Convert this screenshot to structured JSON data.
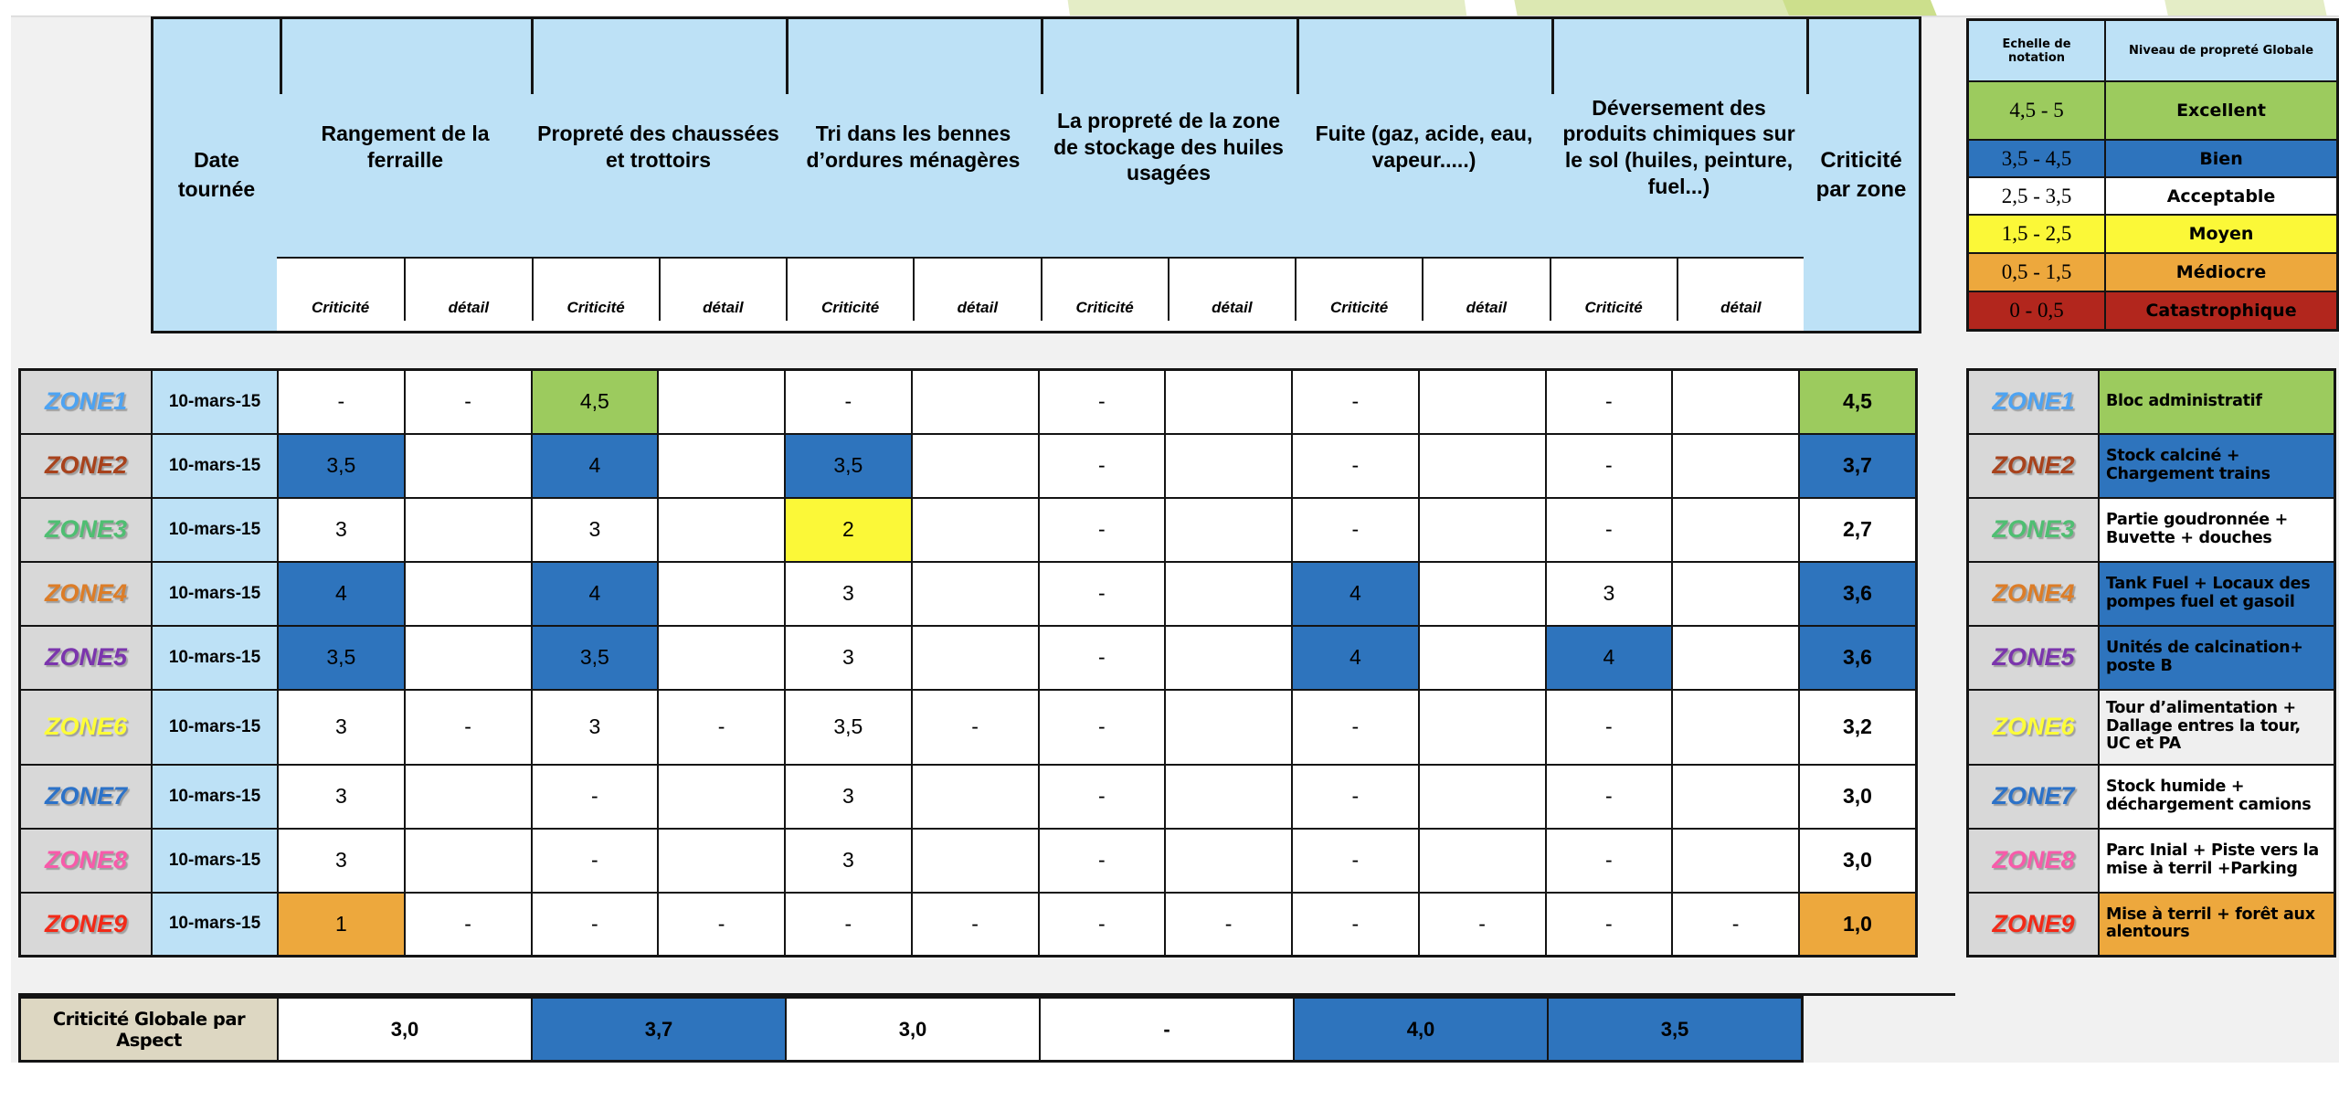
{
  "palette": {
    "header_blue": "#BDE1F6",
    "green": "#9CCB5E",
    "blue": "#2E74BD",
    "yellow": "#FBF838",
    "orange": "#EDA83D",
    "red": "#B2261D",
    "white": "#FFFFFF",
    "light_gray": "#EFEFEF",
    "zone_label_gray": "#D8D8D8",
    "summary_beige": "#DDD7C2",
    "swoosh_pale": "#E4EDC6",
    "swoosh_mid": "#DCE8B2",
    "swoosh_bright": "#CCDF8C"
  },
  "header": {
    "date_label": "Date tournée",
    "zone_total_label": "Criticité par zone",
    "sub_labels": {
      "criticite": "Criticité",
      "detail": "détail"
    },
    "aspects": [
      {
        "id": "rangement-ferraille",
        "label": "Rangement de la ferraille"
      },
      {
        "id": "proprete-chaussees",
        "label": "Propreté des chaussées et trottoirs"
      },
      {
        "id": "tri-bennes",
        "label": "Tri dans les bennes d’ordures ménagères"
      },
      {
        "id": "proprete-stockage-huiles",
        "label": "La propreté de la zone de stockage des huiles usagées"
      },
      {
        "id": "fuite",
        "label": "Fuite (gaz, acide, eau, vapeur.....)"
      },
      {
        "id": "deversement-produits",
        "label": "Déversement des produits chimiques sur le sol (huiles, peinture, fuel...)"
      }
    ]
  },
  "zones": [
    {
      "name": "ZONE1",
      "color": "#4DA3F2",
      "date": "10-mars-15",
      "cells": [
        [
          "-",
          "white"
        ],
        [
          "-",
          "white"
        ],
        [
          "4,5",
          "green"
        ],
        [
          "",
          "white"
        ],
        [
          "-",
          "white"
        ],
        [
          "",
          "white"
        ],
        [
          "-",
          "white"
        ],
        [
          "",
          "white"
        ],
        [
          "-",
          "white"
        ],
        [
          "",
          "white"
        ],
        [
          "-",
          "white"
        ],
        [
          "",
          "white"
        ]
      ],
      "total": [
        "4,5",
        "green"
      ],
      "description": [
        "Bloc administratif",
        "green"
      ]
    },
    {
      "name": "ZONE2",
      "color": "#A8421C",
      "date": "10-mars-15",
      "cells": [
        [
          "3,5",
          "blue"
        ],
        [
          "",
          "white"
        ],
        [
          "4",
          "blue"
        ],
        [
          "",
          "white"
        ],
        [
          "3,5",
          "blue"
        ],
        [
          "",
          "white"
        ],
        [
          "-",
          "white"
        ],
        [
          "",
          "white"
        ],
        [
          "-",
          "white"
        ],
        [
          "",
          "white"
        ],
        [
          "-",
          "white"
        ],
        [
          "",
          "white"
        ]
      ],
      "total": [
        "3,7",
        "blue"
      ],
      "description": [
        "Stock calciné + Chargement trains",
        "blue"
      ]
    },
    {
      "name": "ZONE3",
      "color": "#4FBE72",
      "date": "10-mars-15",
      "cells": [
        [
          "3",
          "white"
        ],
        [
          "",
          "white"
        ],
        [
          "3",
          "white"
        ],
        [
          "",
          "white"
        ],
        [
          "2",
          "yellow"
        ],
        [
          "",
          "white"
        ],
        [
          "-",
          "white"
        ],
        [
          "",
          "white"
        ],
        [
          "-",
          "white"
        ],
        [
          "",
          "white"
        ],
        [
          "-",
          "white"
        ],
        [
          "",
          "white"
        ]
      ],
      "total": [
        "2,7",
        "white"
      ],
      "description": [
        "Partie goudronnée + Buvette + douches",
        "white"
      ]
    },
    {
      "name": "ZONE4",
      "color": "#DC7D28",
      "date": "10-mars-15",
      "cells": [
        [
          "4",
          "blue"
        ],
        [
          "",
          "white"
        ],
        [
          "4",
          "blue"
        ],
        [
          "",
          "white"
        ],
        [
          "3",
          "white"
        ],
        [
          "",
          "white"
        ],
        [
          "-",
          "white"
        ],
        [
          "",
          "white"
        ],
        [
          "4",
          "blue"
        ],
        [
          "",
          "white"
        ],
        [
          "3",
          "white"
        ],
        [
          "",
          "white"
        ]
      ],
      "total": [
        "3,6",
        "blue"
      ],
      "description": [
        "Tank Fuel + Locaux des pompes fuel et gasoil",
        "blue"
      ]
    },
    {
      "name": "ZONE5",
      "color": "#7B35AD",
      "date": "10-mars-15",
      "cells": [
        [
          "3,5",
          "blue"
        ],
        [
          "",
          "white"
        ],
        [
          "3,5",
          "blue"
        ],
        [
          "",
          "white"
        ],
        [
          "3",
          "white"
        ],
        [
          "",
          "white"
        ],
        [
          "-",
          "white"
        ],
        [
          "",
          "white"
        ],
        [
          "4",
          "blue"
        ],
        [
          "",
          "white"
        ],
        [
          "4",
          "blue"
        ],
        [
          "",
          "white"
        ]
      ],
      "total": [
        "3,6",
        "blue"
      ],
      "description": [
        "Unités de calcination+ poste B",
        "blue"
      ]
    },
    {
      "name": "ZONE6",
      "color": "#FDFD38",
      "date": "10-mars-15",
      "cells": [
        [
          "3",
          "white"
        ],
        [
          "-",
          "white"
        ],
        [
          "3",
          "white"
        ],
        [
          "-",
          "white"
        ],
        [
          "3,5",
          "white"
        ],
        [
          "-",
          "white"
        ],
        [
          "-",
          "white"
        ],
        [
          "",
          "white"
        ],
        [
          "-",
          "white"
        ],
        [
          "",
          "white"
        ],
        [
          "-",
          "white"
        ],
        [
          "",
          "white"
        ]
      ],
      "total": [
        "3,2",
        "white"
      ],
      "description": [
        "Tour d’alimentation + Dallage entres la tour, UC et PA",
        "light_gray"
      ]
    },
    {
      "name": "ZONE7",
      "color": "#2C72C8",
      "date": "10-mars-15",
      "cells": [
        [
          "3",
          "white"
        ],
        [
          "",
          "white"
        ],
        [
          "-",
          "white"
        ],
        [
          "",
          "white"
        ],
        [
          "3",
          "white"
        ],
        [
          "",
          "white"
        ],
        [
          "-",
          "white"
        ],
        [
          "",
          "white"
        ],
        [
          "-",
          "white"
        ],
        [
          "",
          "white"
        ],
        [
          "-",
          "white"
        ],
        [
          "",
          "white"
        ]
      ],
      "total": [
        "3,0",
        "white"
      ],
      "description": [
        "Stock humide + déchargement camions",
        "white"
      ]
    },
    {
      "name": "ZONE8",
      "color": "#F75BAA",
      "date": "10-mars-15",
      "cells": [
        [
          "3",
          "white"
        ],
        [
          "",
          "white"
        ],
        [
          "-",
          "white"
        ],
        [
          "",
          "white"
        ],
        [
          "3",
          "white"
        ],
        [
          "",
          "white"
        ],
        [
          "-",
          "white"
        ],
        [
          "",
          "white"
        ],
        [
          "-",
          "white"
        ],
        [
          "",
          "white"
        ],
        [
          "-",
          "white"
        ],
        [
          "",
          "white"
        ]
      ],
      "total": [
        "3,0",
        "white"
      ],
      "description": [
        "Parc Inial + Piste vers la mise à terril +Parking",
        "white"
      ]
    },
    {
      "name": "ZONE9",
      "color": "#F22A18",
      "date": "10-mars-15",
      "cells": [
        [
          "1",
          "orange"
        ],
        [
          "-",
          "white"
        ],
        [
          "-",
          "white"
        ],
        [
          "-",
          "white"
        ],
        [
          "-",
          "white"
        ],
        [
          "-",
          "white"
        ],
        [
          "-",
          "white"
        ],
        [
          "-",
          "white"
        ],
        [
          "-",
          "white"
        ],
        [
          "-",
          "white"
        ],
        [
          "-",
          "white"
        ],
        [
          "-",
          "white"
        ]
      ],
      "total": [
        "1,0",
        "orange"
      ],
      "description": [
        "Mise à terril + forêt aux alentours",
        "orange"
      ]
    }
  ],
  "summary": {
    "label": "Criticité Globale par Aspect",
    "values": [
      [
        "3,0",
        "white"
      ],
      [
        "3,7",
        "blue"
      ],
      [
        "3,0",
        "white"
      ],
      [
        "-",
        "white"
      ],
      [
        "4,0",
        "blue"
      ],
      [
        "3,5",
        "blue"
      ]
    ]
  },
  "legend": {
    "title_range": "Echelle de notation",
    "title_level": "Niveau de propreté Globale",
    "rows": [
      {
        "range": "4,5 - 5",
        "level": "Excellent",
        "bg": "green"
      },
      {
        "range": "3,5 - 4,5",
        "level": "Bien",
        "bg": "blue"
      },
      {
        "range": "2,5 - 3,5",
        "level": "Acceptable",
        "bg": "white"
      },
      {
        "range": "1,5 - 2,5",
        "level": "Moyen",
        "bg": "yellow"
      },
      {
        "range": "0,5 - 1,5",
        "level": "Médiocre",
        "bg": "orange"
      },
      {
        "range": "0 - 0,5",
        "level": "Catastrophique",
        "bg": "red"
      }
    ]
  }
}
